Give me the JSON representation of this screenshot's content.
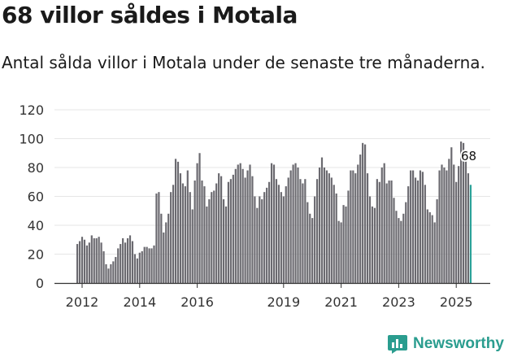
{
  "title": "68 villor såldes i Motala",
  "subtitle": "Antal sålda villor i Motala under de senaste tre månaderna.",
  "brand": {
    "name": "Newsworthy",
    "icon": "newsworthy-logo-icon"
  },
  "colors": {
    "bar": "#6b6a70",
    "highlight": "#2aa198",
    "brand": "#2a9d8f",
    "axis": "#333333"
  },
  "chart_data": {
    "type": "bar",
    "title": "68 villor såldes i Motala",
    "xlabel": "",
    "ylabel": "",
    "ylim": [
      0,
      120
    ],
    "yticks": [
      "0",
      "20",
      "40",
      "60",
      "80",
      "100",
      "120"
    ],
    "xticks": [
      {
        "label": "2012",
        "index": 2
      },
      {
        "label": "2014",
        "index": 26
      },
      {
        "label": "2016",
        "index": 50
      },
      {
        "label": "2019",
        "index": 86
      },
      {
        "label": "2021",
        "index": 110
      },
      {
        "label": "2023",
        "index": 134
      },
      {
        "label": "2025",
        "index": 158
      }
    ],
    "annotation": {
      "text": "68",
      "index": 163
    },
    "start": "2011-11",
    "values": [
      27,
      29,
      32,
      30,
      26,
      28,
      33,
      31,
      31,
      32,
      28,
      22,
      13,
      10,
      13,
      15,
      18,
      24,
      27,
      31,
      28,
      31,
      33,
      29,
      20,
      17,
      21,
      22,
      25,
      25,
      24,
      24,
      26,
      62,
      63,
      48,
      35,
      42,
      48,
      63,
      68,
      86,
      84,
      76,
      69,
      67,
      78,
      63,
      51,
      71,
      83,
      90,
      71,
      67,
      53,
      58,
      63,
      64,
      69,
      76,
      74,
      58,
      53,
      70,
      72,
      75,
      79,
      82,
      83,
      79,
      73,
      78,
      82,
      74,
      60,
      52,
      60,
      58,
      63,
      66,
      70,
      83,
      82,
      72,
      68,
      63,
      60,
      67,
      73,
      78,
      82,
      83,
      80,
      72,
      69,
      72,
      56,
      48,
      45,
      60,
      72,
      80,
      87,
      80,
      78,
      76,
      73,
      68,
      62,
      43,
      42,
      54,
      53,
      64,
      78,
      78,
      76,
      82,
      89,
      97,
      96,
      76,
      60,
      53,
      52,
      72,
      70,
      80,
      83,
      69,
      71,
      71,
      59,
      50,
      45,
      43,
      48,
      56,
      67,
      78,
      78,
      73,
      71,
      78,
      77,
      68,
      51,
      49,
      47,
      42,
      58,
      78,
      82,
      80,
      78,
      86,
      94,
      82,
      70,
      81,
      98,
      97,
      92,
      76,
      68
    ]
  }
}
